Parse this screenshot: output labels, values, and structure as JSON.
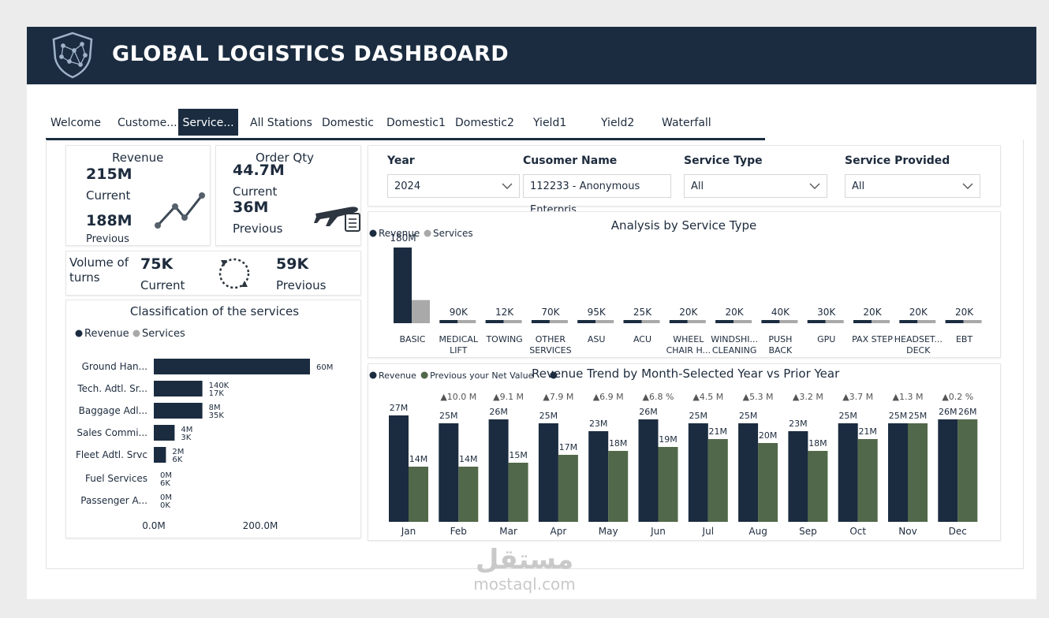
{
  "header": {
    "title": "GLOBAL LOGISTICS DASHBOARD",
    "logo_icon": "shield-network-icon"
  },
  "tabs": [
    {
      "label": "Welcome",
      "active": false
    },
    {
      "label": "Custome...",
      "active": false
    },
    {
      "label": "Service...",
      "active": true
    },
    {
      "label": "All Stations",
      "active": false
    },
    {
      "label": "Domestic",
      "active": false
    },
    {
      "label": "Domestic1",
      "active": false
    },
    {
      "label": "Domestic2",
      "active": false
    },
    {
      "label": "Yield1",
      "active": false
    },
    {
      "label": "Yield2",
      "active": false
    },
    {
      "label": "Waterfall",
      "active": false
    }
  ],
  "kpi": {
    "revenue": {
      "title": "Revenue",
      "current_value": "215M",
      "current_label": "Current",
      "previous_value": "188M",
      "previous_label": "Previous",
      "icon": "trend-line-icon"
    },
    "order_qty": {
      "title": "Order Qty",
      "current_value": "44.7M",
      "current_label": "Current",
      "previous_value": "36M",
      "previous_label": "Previous",
      "icon": "airplane-clipboard-icon"
    },
    "turns": {
      "title_line1": "Volume of",
      "title_line2": "turns",
      "current_value": "75K",
      "current_label": "Current",
      "previous_value": "59K",
      "previous_label": "Previous",
      "icon": "refresh-cycle-icon"
    }
  },
  "filters": [
    {
      "title": "Year",
      "value": "2024",
      "has_dropdown": true
    },
    {
      "title": "Cusomer Name",
      "value": "112233 - Anonymous Enterpris",
      "has_dropdown": false
    },
    {
      "title": "Service Type",
      "value": "All",
      "has_dropdown": true
    },
    {
      "title": "Service Provided",
      "value": "All",
      "has_dropdown": true
    }
  ],
  "colors": {
    "revenue": "#1b2c40",
    "services": "#a9a9a9",
    "net_value": "#52684a",
    "header_bg": "#1b2c40"
  },
  "classification": {
    "title": "Classification of the services",
    "legend": [
      "Revenue",
      "Services"
    ],
    "axis_ticks": [
      "0.0M",
      "200.0M"
    ]
  },
  "analysis": {
    "title": "Analysis by Service Type",
    "legend": [
      "Revenue",
      "Services"
    ]
  },
  "trend": {
    "title": "Revenue Trend by Month-Selected Year vs Prior Year",
    "legend": [
      "Revenue",
      "Previous your Net Value",
      ""
    ]
  },
  "chart_data": [
    {
      "type": "bar",
      "orientation": "horizontal",
      "title": "Classification of the services",
      "categories": [
        "Ground Han...",
        "Tech. Adtl. Sr...",
        "Baggage Adl...",
        "Sales Commi...",
        "Fleet Adtl. Srvc",
        "Fuel Services",
        "Passenger A..."
      ],
      "series": [
        {
          "name": "Revenue",
          "values": [
            60,
            0.14,
            8,
            4,
            2,
            0,
            0
          ],
          "labels": [
            "60M",
            "140K",
            "8M",
            "4M",
            "2M",
            "0M",
            "0M"
          ]
        },
        {
          "name": "Services",
          "values": [
            0,
            0.017,
            0.035,
            0.003,
            0.006,
            0.006,
            0
          ],
          "labels": [
            "",
            "17K",
            "35K",
            "3K",
            "6K",
            "6K",
            "0K"
          ]
        }
      ],
      "bar_lengths": [
        0.9,
        0.28,
        0.28,
        0.12,
        0.07,
        0,
        0
      ],
      "xlim": [
        0,
        200
      ],
      "grid": false,
      "legend": "top-left"
    },
    {
      "type": "bar",
      "title": "Analysis by Service Type",
      "categories": [
        "BASIC",
        "MEDICAL LIFT",
        "TOWING",
        "OTHER SERVICES",
        "ASU",
        "ACU",
        "WHEEL CHAIR H...",
        "WINDSHI... CLEANING",
        "PUSH BACK",
        "GPU",
        "PAX STEP",
        "HEADSET... DECK",
        "EBT"
      ],
      "category_lines": [
        [
          "BASIC"
        ],
        [
          "MEDICAL",
          "LIFT"
        ],
        [
          "TOWING"
        ],
        [
          "OTHER",
          "SERVICES"
        ],
        [
          "ASU"
        ],
        [
          "ACU"
        ],
        [
          "WHEEL",
          "CHAIR H..."
        ],
        [
          "WINDSHI...",
          "CLEANING"
        ],
        [
          "PUSH",
          "BACK"
        ],
        [
          "GPU"
        ],
        [
          "PAX STEP"
        ],
        [
          "HEADSET...",
          "DECK"
        ],
        [
          "EBT"
        ]
      ],
      "labels": [
        "180M",
        "90K",
        "12K",
        "70K",
        "95K",
        "25K",
        "20K",
        "20K",
        "40K",
        "30K",
        "20K",
        "20K",
        "20K"
      ],
      "series": [
        {
          "name": "Revenue",
          "values": [
            180,
            0.09,
            0.012,
            0.07,
            0.095,
            0.025,
            0.02,
            0.02,
            0.04,
            0.03,
            0.02,
            0.02,
            0.02
          ]
        },
        {
          "name": "Services",
          "values": [
            55,
            0.03,
            0.02,
            0.02,
            0.02,
            0.01,
            0.01,
            0.01,
            0.01,
            0.01,
            0.01,
            0.01,
            0.01
          ]
        }
      ],
      "legend": "top-left"
    },
    {
      "type": "bar",
      "title": "Revenue Trend by Month-Selected Year vs Prior Year",
      "categories": [
        "Jan",
        "Feb",
        "Mar",
        "Apr",
        "May",
        "Jun",
        "Jul",
        "Aug",
        "Sep",
        "Oct",
        "Nov",
        "Dec"
      ],
      "series": [
        {
          "name": "Revenue",
          "values": [
            27,
            25,
            26,
            25,
            23,
            26,
            25,
            25,
            23,
            25,
            25,
            26
          ],
          "labels": [
            "27M",
            "25M",
            "26M",
            "25M",
            "23M",
            "26M",
            "25M",
            "25M",
            "23M",
            "25M",
            "25M",
            "26M"
          ]
        },
        {
          "name": "Previous your Net Value",
          "values": [
            14,
            14,
            15,
            17,
            18,
            19,
            21,
            20,
            18,
            21,
            25,
            26
          ],
          "labels": [
            "14M",
            "14M",
            "15M",
            "17M",
            "18M",
            "19M",
            "21M",
            "20M",
            "18M",
            "21M",
            "25M",
            "26M"
          ]
        }
      ],
      "changes": [
        "",
        "▲10.0 M",
        "▲9.1 M",
        "▲7.9 M",
        "▲6.9 M",
        "▲6.8 %",
        "▲4.5 M",
        "▲5.3 M",
        "▲3.2 M",
        "▲3.7 M",
        "▲1.3 M",
        "▲0.2 %"
      ],
      "ylim": [
        0,
        28
      ],
      "legend": "top-left"
    }
  ],
  "watermark": {
    "arabic": "مستقل",
    "latin": "mostaql.com"
  }
}
